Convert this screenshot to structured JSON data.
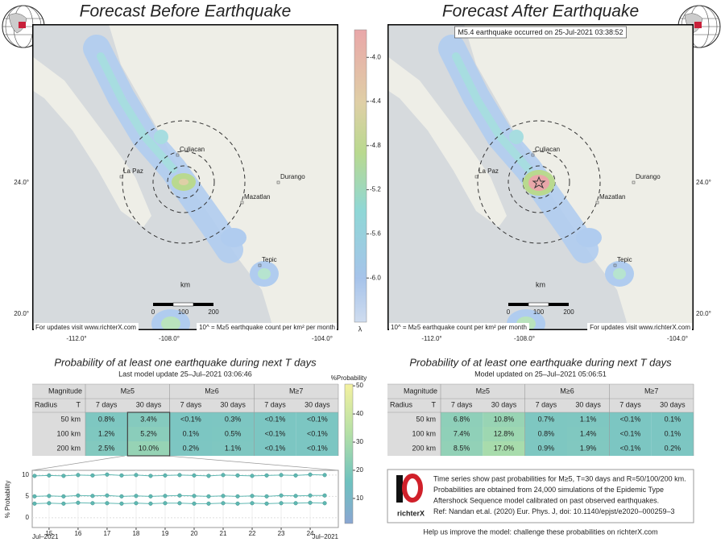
{
  "maps": [
    {
      "title": "Forecast Before Earthquake",
      "footer_left": "For updates visit www.richterX.com",
      "footer_right": "10^ = M≥5 earthquake count per km² per month"
    },
    {
      "title": "Forecast After Earthquake",
      "annotation": "M5.4 earthquake occurred on 25-Jul-2021 03:38:52",
      "footer_left": "10^ = M≥5 earthquake count per km² per month",
      "footer_right": "For updates visit www.richterX.com"
    }
  ],
  "map_labels": [
    "Culiacan",
    "La Paz",
    "Mazatlan",
    "Durango",
    "Tepic"
  ],
  "lat_ticks": [
    "24.0°",
    "20.0°"
  ],
  "lon_ticks": [
    "-112.0°",
    "-108.0°",
    "-104.0°"
  ],
  "scale_bar": {
    "unit": "km",
    "labels": [
      "0",
      "100",
      "200"
    ]
  },
  "colorbar": {
    "label": "λ",
    "ylim": [
      -6.4,
      -3.75
    ],
    "yticks": [
      {
        "value": -4.0,
        "label": "-4.0"
      },
      {
        "value": -4.4,
        "label": "-4.4"
      },
      {
        "value": -4.8,
        "label": "-4.8"
      },
      {
        "value": -5.2,
        "label": "-5.2"
      },
      {
        "value": -5.6,
        "label": "-5.6"
      },
      {
        "value": -6.0,
        "label": "-6.0"
      }
    ]
  },
  "prob_colorbar": {
    "label": "%Probability",
    "ylim": [
      1.1,
      50.6
    ],
    "yticks": [
      10,
      20,
      30,
      40,
      50
    ]
  },
  "tables": [
    {
      "title": "Probability of at least one earthquake during next T days",
      "subtitle": "Last model update 25–Jul–2021 03:06:46",
      "magnitude_label": "Magnitude",
      "radius_label": "Radius",
      "t_label": "T",
      "magnitudes": [
        "M≥5",
        "M≥6",
        "M≥7"
      ],
      "periods": [
        "7 days",
        "30 days",
        "7 days",
        "30 days",
        "7 days",
        "30 days"
      ],
      "rows": [
        [
          "50 km",
          "0.8%",
          "3.4%",
          "<0.1%",
          "0.3%",
          "<0.1%",
          "<0.1%"
        ],
        [
          "100 km",
          "1.2%",
          "5.2%",
          "0.1%",
          "0.5%",
          "<0.1%",
          "<0.1%"
        ],
        [
          "200 km",
          "2.5%",
          "10.0%",
          "0.2%",
          "1.1%",
          "<0.1%",
          "<0.1%"
        ]
      ]
    },
    {
      "title": "Probability of at least one earthquake during next T days",
      "subtitle": "Model updated on 25–Jul–2021 05:06:51",
      "magnitude_label": "Magnitude",
      "radius_label": "Radius",
      "t_label": "T",
      "magnitudes": [
        "M≥5",
        "M≥6",
        "M≥7"
      ],
      "periods": [
        "7 days",
        "30 days",
        "7 days",
        "30 days",
        "7 days",
        "30 days"
      ],
      "rows": [
        [
          "50 km",
          "6.8%",
          "10.8%",
          "0.7%",
          "1.1%",
          "<0.1%",
          "0.1%"
        ],
        [
          "100 km",
          "7.4%",
          "12.8%",
          "0.8%",
          "1.4%",
          "<0.1%",
          "0.1%"
        ],
        [
          "200 km",
          "8.5%",
          "17.0%",
          "0.9%",
          "1.9%",
          "<0.1%",
          "0.2%"
        ]
      ]
    }
  ],
  "chart_data": {
    "type": "line",
    "ylabel": "% Probability",
    "x_month_left": "Jul–2021",
    "x_month_right": "Jul–2021",
    "x": [
      14.5,
      15,
      15.5,
      16,
      16.5,
      17,
      17.5,
      18,
      18.5,
      19,
      19.5,
      20,
      20.5,
      21,
      21.5,
      22,
      22.5,
      23,
      23.5,
      24,
      24.5
    ],
    "xlim": [
      14.42,
      24.97
    ],
    "xticks": [
      15,
      16,
      17,
      18,
      19,
      20,
      21,
      22,
      23,
      24
    ],
    "ylim": [
      -2.3,
      11.1
    ],
    "yticks": [
      0,
      5,
      10
    ],
    "grid": true,
    "color": "#5fb8b2",
    "series": [
      {
        "values": [
          9.8,
          9.9,
          9.8,
          10.0,
          9.9,
          10.1,
          9.9,
          10.0,
          9.8,
          9.9,
          10.0,
          9.9,
          9.8,
          10.0,
          9.9,
          9.8,
          9.9,
          10.0,
          9.9,
          10.1,
          10.0
        ]
      },
      {
        "values": [
          5.0,
          5.1,
          5.0,
          5.2,
          5.1,
          5.2,
          5.0,
          5.1,
          5.0,
          5.1,
          5.2,
          5.1,
          5.0,
          5.1,
          5.0,
          5.1,
          5.0,
          5.2,
          5.1,
          5.2,
          5.2
        ]
      },
      {
        "values": [
          3.3,
          3.4,
          3.3,
          3.5,
          3.4,
          3.4,
          3.3,
          3.4,
          3.3,
          3.4,
          3.4,
          3.3,
          3.3,
          3.4,
          3.3,
          3.4,
          3.3,
          3.4,
          3.4,
          3.5,
          3.4
        ]
      }
    ]
  },
  "info": {
    "lines": [
      "Time series show past probabilities for M≥5, T=30 days and R=50/100/200 km.",
      "Probabilities are obtained from 24,000 simulations of the Epidemic Type",
      "Aftershock Sequence model calibrated on past observed earthquakes.",
      "Ref: Nandan et.al. (2020) Eur. Phys. J, doi: 10.1140/epjst/e2020–000259–3"
    ],
    "logo": "richterX",
    "footer": "Help us improve the model: challenge these probabilities on richterX.com"
  }
}
